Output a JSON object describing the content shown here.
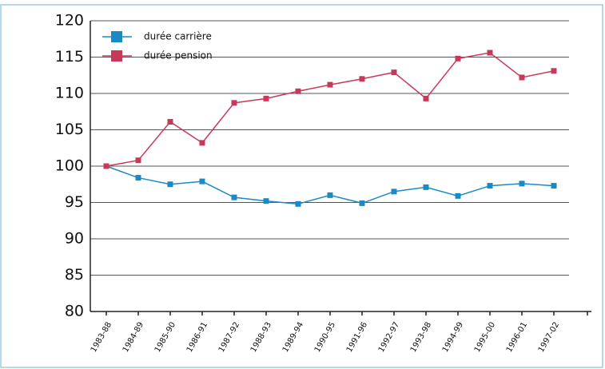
{
  "chart_data": {
    "type": "line",
    "categories": [
      "1983-88",
      "1984-89",
      "1985-90",
      "1986-91",
      "1987-92",
      "1988-93",
      "1989-94",
      "1990-95",
      "1991-96",
      "1992-97",
      "1993-98",
      "1994-99",
      "1995-00",
      "1996-01",
      "1997-02"
    ],
    "series": [
      {
        "name": "durée carrière",
        "color": "#1a8ac6",
        "values": [
          100,
          98.4,
          97.5,
          97.9,
          95.7,
          95.2,
          94.8,
          96.0,
          94.9,
          96.5,
          97.1,
          95.9,
          97.3,
          97.6,
          97.3
        ]
      },
      {
        "name": "durée pension",
        "color": "#c8385a",
        "values": [
          100,
          100.8,
          106.1,
          103.2,
          108.7,
          109.3,
          110.3,
          111.2,
          112.0,
          112.9,
          109.3,
          114.8,
          115.6,
          112.2,
          113.1
        ]
      }
    ],
    "ylim": [
      80,
      120
    ],
    "yticks": [
      80,
      85,
      90,
      95,
      100,
      105,
      110,
      115,
      120
    ],
    "grid": true,
    "legend": "top-left"
  }
}
